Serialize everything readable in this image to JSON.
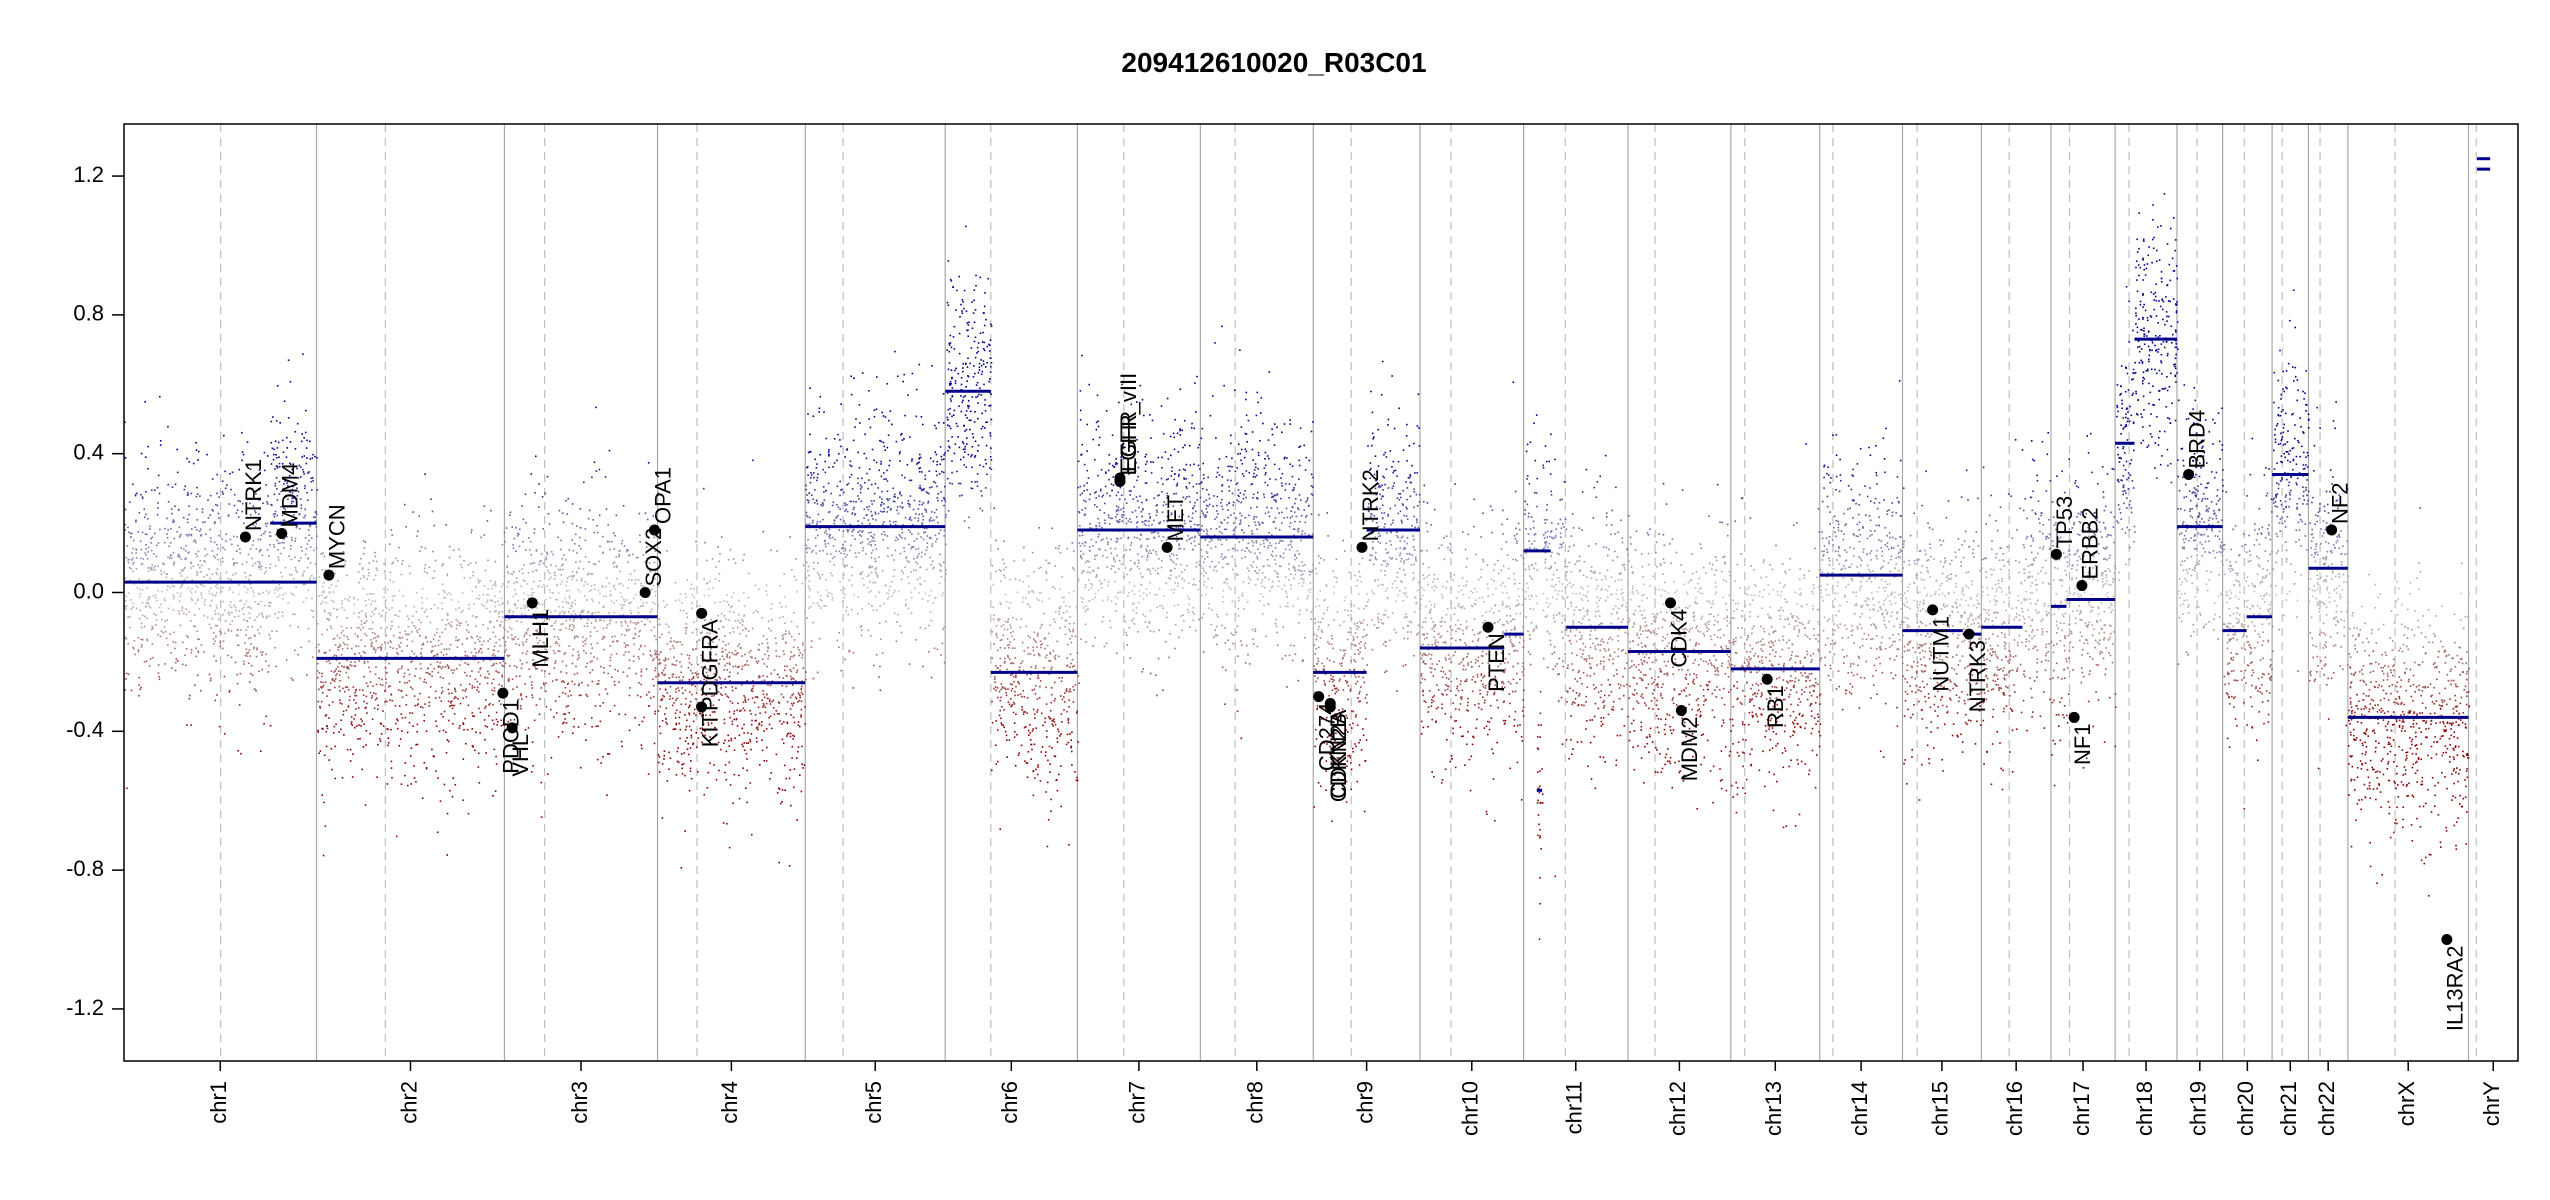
{
  "chart_data": {
    "type": "scatter",
    "title": "209412610020_R03C01",
    "xlabel": "",
    "ylabel": "",
    "ylim": [
      -1.35,
      1.35
    ],
    "y_ticks": [
      -1.2,
      -0.8,
      -0.4,
      0.0,
      0.4,
      0.8,
      1.2
    ],
    "y_tick_labels": [
      "-1.2",
      "-0.8",
      "-0.4",
      "0.0",
      "0.4",
      "0.8",
      "1.2"
    ],
    "genome_length_mb": 3096,
    "grid": false,
    "colors": {
      "gain": "#00008b",
      "loss": "#8b0000",
      "neutral": "#c0c0c0",
      "segment": "#00008b",
      "chrom_boundary": "#a9a9a9",
      "centromere": "#bebebe",
      "gene_point": "#000000",
      "axis": "#000000"
    },
    "chromosomes": [
      {
        "name": "chr1",
        "label": "chr1",
        "start": 0,
        "end": 249,
        "centro": 125
      },
      {
        "name": "chr2",
        "label": "chr2",
        "start": 249,
        "end": 492,
        "centro": 338
      },
      {
        "name": "chr3",
        "label": "chr3",
        "start": 492,
        "end": 690,
        "centro": 544
      },
      {
        "name": "chr4",
        "label": "chr4",
        "start": 690,
        "end": 881,
        "centro": 741
      },
      {
        "name": "chr5",
        "label": "chr5",
        "start": 881,
        "end": 1062,
        "centro": 930
      },
      {
        "name": "chr6",
        "label": "chr6",
        "start": 1062,
        "end": 1233,
        "centro": 1121
      },
      {
        "name": "chr7",
        "label": "chr7",
        "start": 1233,
        "end": 1392,
        "centro": 1293
      },
      {
        "name": "chr8",
        "label": "chr8",
        "start": 1392,
        "end": 1538,
        "centro": 1437
      },
      {
        "name": "chr9",
        "label": "chr9",
        "start": 1538,
        "end": 1676,
        "centro": 1587
      },
      {
        "name": "chr10",
        "label": "chr10",
        "start": 1676,
        "end": 1810,
        "centro": 1716
      },
      {
        "name": "chr11",
        "label": "chr11",
        "start": 1810,
        "end": 1945,
        "centro": 1864
      },
      {
        "name": "chr12",
        "label": "chr12",
        "start": 1945,
        "end": 2078,
        "centro": 1980
      },
      {
        "name": "chr13",
        "label": "chr13",
        "start": 2078,
        "end": 2193,
        "centro": 2096
      },
      {
        "name": "chr14",
        "label": "chr14",
        "start": 2193,
        "end": 2300,
        "centro": 2210
      },
      {
        "name": "chr15",
        "label": "chr15",
        "start": 2300,
        "end": 2402,
        "centro": 2319
      },
      {
        "name": "chr16",
        "label": "chr16",
        "start": 2402,
        "end": 2492,
        "centro": 2438
      },
      {
        "name": "chr17",
        "label": "chr17",
        "start": 2492,
        "end": 2575,
        "centro": 2516
      },
      {
        "name": "chr18",
        "label": "chr18",
        "start": 2575,
        "end": 2655,
        "centro": 2593
      },
      {
        "name": "chr19",
        "label": "chr19",
        "start": 2655,
        "end": 2714,
        "centro": 2681
      },
      {
        "name": "chr20",
        "label": "chr20",
        "start": 2714,
        "end": 2778,
        "centro": 2742
      },
      {
        "name": "chr21",
        "label": "chr21",
        "start": 2778,
        "end": 2825,
        "centro": 2791
      },
      {
        "name": "chr22",
        "label": "chr22",
        "start": 2825,
        "end": 2876,
        "centro": 2840
      },
      {
        "name": "chrX",
        "label": "chrX",
        "start": 2876,
        "end": 3032,
        "centro": 2937
      },
      {
        "name": "chrY",
        "label": "chrY",
        "start": 3032,
        "end": 3096,
        "centro": 3042
      }
    ],
    "segments": [
      {
        "chr": "chr1",
        "start": 0,
        "end": 249,
        "value": 0.03
      },
      {
        "chr": "chr1",
        "start": 189,
        "end": 249,
        "value": 0.2
      },
      {
        "chr": "chr2",
        "start": 249,
        "end": 492,
        "value": -0.19
      },
      {
        "chr": "chr3",
        "start": 492,
        "end": 690,
        "value": -0.07
      },
      {
        "chr": "chr4",
        "start": 690,
        "end": 881,
        "value": -0.26
      },
      {
        "chr": "chr5",
        "start": 881,
        "end": 1062,
        "value": 0.19
      },
      {
        "chr": "chr6",
        "start": 1062,
        "end": 1121,
        "value": 0.58
      },
      {
        "chr": "chr6",
        "start": 1121,
        "end": 1233,
        "value": -0.23
      },
      {
        "chr": "chr7",
        "start": 1233,
        "end": 1392,
        "value": 0.18
      },
      {
        "chr": "chr8",
        "start": 1392,
        "end": 1538,
        "value": 0.16
      },
      {
        "chr": "chr9",
        "start": 1538,
        "end": 1607,
        "value": -0.23
      },
      {
        "chr": "chr9",
        "start": 1607,
        "end": 1676,
        "value": 0.18
      },
      {
        "chr": "chr10",
        "start": 1676,
        "end": 1785,
        "value": -0.16
      },
      {
        "chr": "chr10",
        "start": 1785,
        "end": 1810,
        "value": -0.12
      },
      {
        "chr": "chr11",
        "start": 1810,
        "end": 1845,
        "value": 0.12
      },
      {
        "chr": "chr11",
        "start": 1865,
        "end": 1945,
        "value": -0.1
      },
      {
        "chr": "chr11",
        "start": 1827,
        "end": 1834,
        "value": -0.57
      },
      {
        "chr": "chr12",
        "start": 1945,
        "end": 2078,
        "value": -0.17
      },
      {
        "chr": "chr13",
        "start": 2078,
        "end": 2193,
        "value": -0.22
      },
      {
        "chr": "chr14",
        "start": 2193,
        "end": 2300,
        "value": 0.05
      },
      {
        "chr": "chr15",
        "start": 2300,
        "end": 2378,
        "value": -0.11
      },
      {
        "chr": "chr15",
        "start": 2378,
        "end": 2402,
        "value": -0.12
      },
      {
        "chr": "chr16",
        "start": 2402,
        "end": 2455,
        "value": -0.1
      },
      {
        "chr": "chr17",
        "start": 2492,
        "end": 2512,
        "value": -0.04
      },
      {
        "chr": "chr17",
        "start": 2512,
        "end": 2575,
        "value": -0.02
      },
      {
        "chr": "chr18",
        "start": 2575,
        "end": 2600,
        "value": 0.43
      },
      {
        "chr": "chr18",
        "start": 2600,
        "end": 2655,
        "value": 0.73
      },
      {
        "chr": "chr19",
        "start": 2655,
        "end": 2714,
        "value": 0.19
      },
      {
        "chr": "chr20",
        "start": 2714,
        "end": 2745,
        "value": -0.11
      },
      {
        "chr": "chr20",
        "start": 2745,
        "end": 2778,
        "value": -0.07
      },
      {
        "chr": "chr21",
        "start": 2778,
        "end": 2825,
        "value": 0.34
      },
      {
        "chr": "chr22",
        "start": 2825,
        "end": 2876,
        "value": 0.07
      },
      {
        "chr": "chrX",
        "start": 2876,
        "end": 3032,
        "value": -0.36
      },
      {
        "chr": "chrY",
        "start": 3043,
        "end": 3060,
        "value": 1.22
      },
      {
        "chr": "chrY",
        "start": 3043,
        "end": 3060,
        "value": 1.25
      }
    ],
    "genes": [
      {
        "name": "NTRK1",
        "pos": 157,
        "value": 0.16
      },
      {
        "name": "MDM4",
        "pos": 204,
        "value": 0.17
      },
      {
        "name": "MYCN",
        "pos": 265,
        "value": 0.05
      },
      {
        "name": "PDCD1",
        "pos": 490,
        "value": -0.29
      },
      {
        "name": "VHL",
        "pos": 502,
        "value": -0.39
      },
      {
        "name": "MLH1",
        "pos": 528,
        "value": -0.03
      },
      {
        "name": "SOX2",
        "pos": 674,
        "value": 0.0
      },
      {
        "name": "OPA1",
        "pos": 686,
        "value": 0.18
      },
      {
        "name": "KIT",
        "pos": 747,
        "value": -0.33
      },
      {
        "name": "PDGFRA",
        "pos": 747,
        "value": -0.06
      },
      {
        "name": "EGFR",
        "pos": 1288,
        "value": 0.33
      },
      {
        "name": "EGFR_vIII",
        "pos": 1288,
        "value": 0.32
      },
      {
        "name": "MET",
        "pos": 1349,
        "value": 0.13
      },
      {
        "name": "CDKN2A",
        "pos": 1560,
        "value": -0.32
      },
      {
        "name": "CDKN2B",
        "pos": 1560,
        "value": -0.33
      },
      {
        "name": "CD274",
        "pos": 1545,
        "value": -0.3
      },
      {
        "name": "NTRK2",
        "pos": 1601,
        "value": 0.13
      },
      {
        "name": "PTEN",
        "pos": 1764,
        "value": -0.1
      },
      {
        "name": "CDK4",
        "pos": 2000,
        "value": -0.03
      },
      {
        "name": "MDM2",
        "pos": 2014,
        "value": -0.34
      },
      {
        "name": "RB1",
        "pos": 2125,
        "value": -0.25
      },
      {
        "name": "NUTM1",
        "pos": 2339,
        "value": -0.05
      },
      {
        "name": "NTRK3",
        "pos": 2386,
        "value": -0.12
      },
      {
        "name": "TP53",
        "pos": 2499,
        "value": 0.11
      },
      {
        "name": "NF1",
        "pos": 2522,
        "value": -0.36
      },
      {
        "name": "ERBB2",
        "pos": 2532,
        "value": 0.02
      },
      {
        "name": "BRD4",
        "pos": 2670,
        "value": 0.34
      },
      {
        "name": "NF2",
        "pos": 2855,
        "value": 0.18
      },
      {
        "name": "IL13RA2",
        "pos": 3004,
        "value": -1.0
      }
    ],
    "probe_sampling": {
      "noise_sd": 0.17,
      "chrY_probes_shown": false
    }
  }
}
